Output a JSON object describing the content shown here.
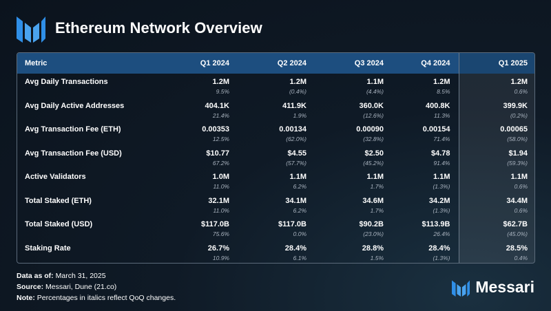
{
  "header": {
    "title": "Ethereum Network Overview"
  },
  "table": {
    "columns": [
      "Metric",
      "Q1 2024",
      "Q2 2024",
      "Q3 2024",
      "Q4 2024",
      "Q1 2025"
    ],
    "rows": [
      {
        "metric": "Avg Daily Transactions",
        "cells": [
          [
            "1.2M",
            "9.5%"
          ],
          [
            "1.2M",
            "(0.4%)"
          ],
          [
            "1.1M",
            "(4.4%)"
          ],
          [
            "1.2M",
            "8.5%"
          ],
          [
            "1.2M",
            "0.6%"
          ]
        ]
      },
      {
        "metric": "Avg Daily Active Addresses",
        "cells": [
          [
            "404.1K",
            "21.4%"
          ],
          [
            "411.9K",
            "1.9%"
          ],
          [
            "360.0K",
            "(12.6%)"
          ],
          [
            "400.8K",
            "11.3%"
          ],
          [
            "399.9K",
            "(0.2%)"
          ]
        ]
      },
      {
        "metric": "Avg Transaction Fee (ETH)",
        "cells": [
          [
            "0.00353",
            "12.5%"
          ],
          [
            "0.00134",
            "(62.0%)"
          ],
          [
            "0.00090",
            "(32.8%)"
          ],
          [
            "0.00154",
            "71.4%"
          ],
          [
            "0.00065",
            "(58.0%)"
          ]
        ]
      },
      {
        "metric": "Avg Transaction Fee (USD)",
        "cells": [
          [
            "$10.77",
            "67.2%"
          ],
          [
            "$4.55",
            "(57.7%)"
          ],
          [
            "$2.50",
            "(45.2%)"
          ],
          [
            "$4.78",
            "91.4%"
          ],
          [
            "$1.94",
            "(59.3%)"
          ]
        ]
      },
      {
        "metric": "Active Validators",
        "cells": [
          [
            "1.0M",
            "11.0%"
          ],
          [
            "1.1M",
            "6.2%"
          ],
          [
            "1.1M",
            "1.7%"
          ],
          [
            "1.1M",
            "(1.3%)"
          ],
          [
            "1.1M",
            "0.6%"
          ]
        ]
      },
      {
        "metric": "Total Staked (ETH)",
        "cells": [
          [
            "32.1M",
            "11.0%"
          ],
          [
            "34.1M",
            "6.2%"
          ],
          [
            "34.6M",
            "1.7%"
          ],
          [
            "34.2M",
            "(1.3%)"
          ],
          [
            "34.4M",
            "0.6%"
          ]
        ]
      },
      {
        "metric": "Total Staked (USD)",
        "cells": [
          [
            "$117.0B",
            "75.6%"
          ],
          [
            "$117.0B",
            "0.0%"
          ],
          [
            "$90.2B",
            "(23.0%)"
          ],
          [
            "$113.9B",
            "26.4%"
          ],
          [
            "$62.7B",
            "(45.0%)"
          ]
        ]
      },
      {
        "metric": "Staking Rate",
        "cells": [
          [
            "26.7%",
            "10.9%"
          ],
          [
            "28.4%",
            "6.1%"
          ],
          [
            "28.8%",
            "1.5%"
          ],
          [
            "28.4%",
            "(1.3%)"
          ],
          [
            "28.5%",
            "0.4%"
          ]
        ]
      }
    ]
  },
  "footer": {
    "data_as_of_label": "Data as of:",
    "data_as_of_value": "March 31, 2025",
    "source_label": "Source:",
    "source_value": "Messari, Dune (21.co)",
    "note_label": "Note:",
    "note_value": "Percentages in italics reflect QoQ changes."
  },
  "brand": {
    "name": "Messari",
    "accent_color": "#2f8fe8",
    "icon": "messari-logo-icon"
  }
}
